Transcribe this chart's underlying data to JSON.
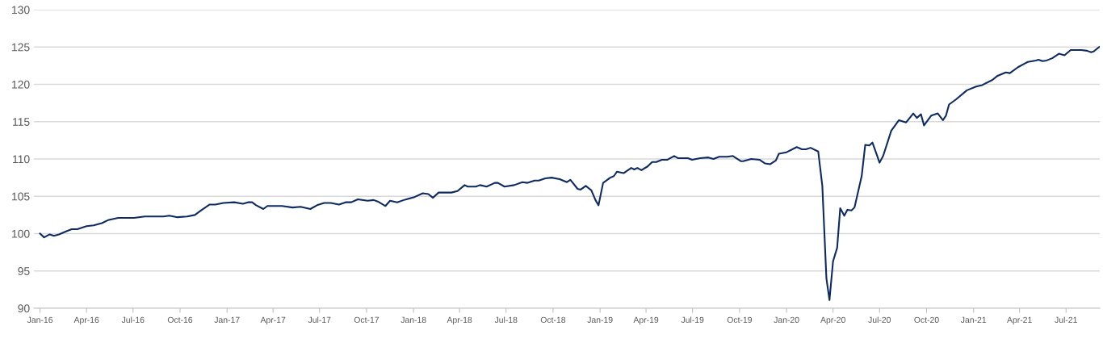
{
  "chart_data": {
    "type": "line",
    "x": [
      "2016-01-01",
      "2016-01-09",
      "2016-01-20",
      "2016-01-28",
      "2016-02-07",
      "2016-02-21",
      "2016-03-03",
      "2016-03-14",
      "2016-04-01",
      "2016-04-15",
      "2016-05-01",
      "2016-05-13",
      "2016-06-02",
      "2016-06-12",
      "2016-07-03",
      "2016-07-24",
      "2016-08-14",
      "2016-08-30",
      "2016-09-10",
      "2016-09-26",
      "2016-10-15",
      "2016-10-30",
      "2016-11-13",
      "2016-11-28",
      "2016-12-09",
      "2016-12-25",
      "2017-01-15",
      "2017-02-01",
      "2017-02-11",
      "2017-02-19",
      "2017-02-27",
      "2017-03-13",
      "2017-03-21",
      "2017-04-03",
      "2017-04-19",
      "2017-05-09",
      "2017-05-25",
      "2017-06-13",
      "2017-06-26",
      "2017-07-10",
      "2017-07-23",
      "2017-08-08",
      "2017-08-21",
      "2017-09-01",
      "2017-09-14",
      "2017-10-03",
      "2017-10-15",
      "2017-10-23",
      "2017-11-07",
      "2017-11-16",
      "2017-11-30",
      "2017-12-13",
      "2017-12-18",
      "2018-01-03",
      "2018-01-19",
      "2018-01-30",
      "2018-02-08",
      "2018-02-19",
      "2018-03-16",
      "2018-03-28",
      "2018-04-11",
      "2018-04-17",
      "2018-05-03",
      "2018-05-11",
      "2018-05-24",
      "2018-06-09",
      "2018-06-15",
      "2018-06-28",
      "2018-07-17",
      "2018-08-02",
      "2018-08-12",
      "2018-08-26",
      "2018-09-03",
      "2018-09-16",
      "2018-09-28",
      "2018-10-14",
      "2018-10-28",
      "2018-11-04",
      "2018-11-18",
      "2018-11-24",
      "2018-12-04",
      "2018-12-15",
      "2018-12-23",
      "2018-12-29",
      "2019-01-07",
      "2019-01-13",
      "2019-01-21",
      "2019-01-28",
      "2019-02-03",
      "2019-02-16",
      "2019-03-03",
      "2019-03-09",
      "2019-03-15",
      "2019-03-23",
      "2019-04-04",
      "2019-04-13",
      "2019-04-21",
      "2019-05-02",
      "2019-05-13",
      "2019-05-26",
      "2019-06-03",
      "2019-06-14",
      "2019-06-22",
      "2019-06-30",
      "2019-07-16",
      "2019-08-01",
      "2019-08-11",
      "2019-08-22",
      "2019-09-07",
      "2019-09-18",
      "2019-10-04",
      "2019-10-08",
      "2019-10-24",
      "2019-11-09",
      "2019-11-20",
      "2019-11-30",
      "2019-12-11",
      "2019-12-17",
      "2020-01-01",
      "2020-01-21",
      "2020-01-31",
      "2020-02-08",
      "2020-02-17",
      "2020-03-03",
      "2020-03-11",
      "2020-03-19",
      "2020-03-25",
      "2020-04-01",
      "2020-04-09",
      "2020-04-15",
      "2020-04-23",
      "2020-04-29",
      "2020-05-07",
      "2020-05-13",
      "2020-05-27",
      "2020-06-03",
      "2020-06-11",
      "2020-06-17",
      "2020-06-25",
      "2020-07-01",
      "2020-07-08",
      "2020-07-24",
      "2020-08-08",
      "2020-08-22",
      "2020-09-05",
      "2020-09-12",
      "2020-09-20",
      "2020-09-26",
      "2020-10-10",
      "2020-10-23",
      "2020-11-02",
      "2020-11-08",
      "2020-11-14",
      "2020-11-28",
      "2020-12-19",
      "2021-01-06",
      "2021-01-18",
      "2021-02-07",
      "2021-02-16",
      "2021-03-05",
      "2021-03-13",
      "2021-03-29",
      "2021-04-17",
      "2021-05-03",
      "2021-05-08",
      "2021-05-16",
      "2021-05-24",
      "2021-06-04",
      "2021-06-17",
      "2021-06-28",
      "2021-07-10",
      "2021-07-31",
      "2021-08-11",
      "2021-08-19",
      "2021-08-24",
      "2021-09-04"
    ],
    "series": [
      {
        "color": "#0d2a63",
        "values": [
          100.0,
          99.5,
          99.9,
          99.7,
          99.9,
          100.3,
          100.6,
          100.6,
          101.0,
          101.1,
          101.4,
          101.8,
          102.1,
          102.1,
          102.1,
          102.3,
          102.3,
          102.3,
          102.4,
          102.2,
          102.3,
          102.5,
          103.2,
          103.9,
          103.9,
          104.1,
          104.2,
          104.0,
          104.2,
          104.2,
          103.8,
          103.3,
          103.7,
          103.7,
          103.7,
          103.5,
          103.6,
          103.3,
          103.8,
          104.1,
          104.1,
          103.9,
          104.2,
          104.2,
          104.6,
          104.4,
          104.5,
          104.3,
          103.7,
          104.4,
          104.2,
          104.5,
          104.6,
          104.9,
          105.4,
          105.3,
          104.8,
          105.5,
          105.5,
          105.7,
          106.5,
          106.3,
          106.3,
          106.5,
          106.3,
          106.8,
          106.8,
          106.3,
          106.5,
          106.9,
          106.8,
          107.1,
          107.1,
          107.4,
          107.5,
          107.3,
          106.9,
          107.2,
          106.0,
          105.9,
          106.4,
          105.8,
          104.5,
          103.8,
          106.8,
          107.1,
          107.5,
          107.7,
          108.3,
          108.1,
          108.8,
          108.6,
          108.8,
          108.5,
          109.0,
          109.6,
          109.6,
          109.9,
          109.9,
          110.4,
          110.1,
          110.1,
          110.1,
          109.9,
          110.1,
          110.2,
          110.0,
          110.3,
          110.3,
          110.4,
          109.7,
          109.7,
          110.0,
          109.9,
          109.4,
          109.3,
          109.8,
          110.7,
          110.9,
          111.6,
          111.3,
          111.3,
          111.5,
          111.0,
          106.4,
          94.0,
          91.1,
          96.3,
          98.1,
          103.4,
          102.4,
          103.2,
          103.1,
          103.5,
          107.7,
          111.9,
          111.8,
          112.2,
          110.7,
          109.5,
          110.4,
          113.8,
          115.2,
          114.9,
          116.1,
          115.5,
          116.0,
          114.5,
          115.8,
          116.1,
          115.2,
          115.8,
          117.3,
          118.0,
          119.2,
          119.7,
          119.9,
          120.6,
          121.1,
          121.6,
          121.5,
          122.3,
          123.0,
          123.2,
          123.3,
          123.1,
          123.2,
          123.5,
          124.1,
          123.9,
          124.6,
          124.6,
          124.5,
          124.3,
          124.4,
          125.0
        ]
      }
    ],
    "xlim": [
      "2015-12-20",
      "2021-09-05"
    ],
    "xticks": [
      {
        "value": "2016-01-01",
        "label": "Jan-16"
      },
      {
        "value": "2016-04-01",
        "label": "Apr-16"
      },
      {
        "value": "2016-07-01",
        "label": "Jul-16"
      },
      {
        "value": "2016-10-01",
        "label": "Oct-16"
      },
      {
        "value": "2017-01-01",
        "label": "Jan-17"
      },
      {
        "value": "2017-04-01",
        "label": "Apr-17"
      },
      {
        "value": "2017-07-01",
        "label": "Jul-17"
      },
      {
        "value": "2017-10-01",
        "label": "Oct-17"
      },
      {
        "value": "2018-01-01",
        "label": "Jan-18"
      },
      {
        "value": "2018-04-01",
        "label": "Apr-18"
      },
      {
        "value": "2018-07-01",
        "label": "Jul-18"
      },
      {
        "value": "2018-10-01",
        "label": "Oct-18"
      },
      {
        "value": "2019-01-01",
        "label": "Jan-19"
      },
      {
        "value": "2019-04-01",
        "label": "Apr-19"
      },
      {
        "value": "2019-07-01",
        "label": "Jul-19"
      },
      {
        "value": "2019-10-01",
        "label": "Oct-19"
      },
      {
        "value": "2020-01-01",
        "label": "Jan-20"
      },
      {
        "value": "2020-04-01",
        "label": "Apr-20"
      },
      {
        "value": "2020-07-01",
        "label": "Jul-20"
      },
      {
        "value": "2020-10-01",
        "label": "Oct-20"
      },
      {
        "value": "2021-01-01",
        "label": "Jan-21"
      },
      {
        "value": "2021-04-01",
        "label": "Apr-21"
      },
      {
        "value": "2021-07-01",
        "label": "Jul-21"
      }
    ],
    "ylim": [
      90,
      130
    ],
    "yticks": [
      90,
      95,
      100,
      105,
      110,
      115,
      120,
      125,
      130
    ],
    "grid": "y",
    "line_style": "solid"
  }
}
